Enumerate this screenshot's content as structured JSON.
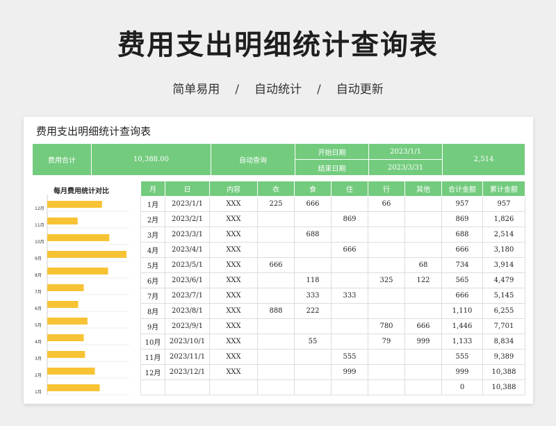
{
  "header": {
    "title": "费用支出明细统计查询表",
    "subtitle": [
      "简单易用",
      "自动统计",
      "自动更新"
    ],
    "separator": "/"
  },
  "sheet": {
    "title": "费用支出明细统计查询表",
    "summary": {
      "total_label": "费用合计",
      "total_value": "10,388.00",
      "query_label": "自动查询",
      "start_label": "开始日期",
      "start_value": "2023/1/1",
      "end_label": "结束日期",
      "end_value": "2023/3/31",
      "result_value": "2,514"
    }
  },
  "chart_data": {
    "type": "bar",
    "orientation": "horizontal",
    "title": "每月费用统计对比",
    "categories": [
      "12月",
      "11月",
      "10月",
      "9月",
      "8月",
      "7月",
      "6月",
      "5月",
      "4月",
      "3月",
      "2月",
      "1月"
    ],
    "values": [
      999,
      555,
      1133,
      1446,
      1110,
      666,
      565,
      734,
      666,
      688,
      869,
      957
    ],
    "xlim": [
      0,
      1446
    ],
    "grid": false,
    "color": "#f7c334"
  },
  "table": {
    "columns": [
      "月",
      "日",
      "内容",
      "衣",
      "食",
      "住",
      "行",
      "其他",
      "合计金额",
      "累计金额"
    ],
    "rows": [
      [
        "1月",
        "2023/1/1",
        "XXX",
        "225",
        "666",
        "",
        "66",
        "",
        "957",
        "957"
      ],
      [
        "2月",
        "2023/2/1",
        "XXX",
        "",
        "",
        "869",
        "",
        "",
        "869",
        "1,826"
      ],
      [
        "3月",
        "2023/3/1",
        "XXX",
        "",
        "688",
        "",
        "",
        "",
        "688",
        "2,514"
      ],
      [
        "4月",
        "2023/4/1",
        "XXX",
        "",
        "",
        "666",
        "",
        "",
        "666",
        "3,180"
      ],
      [
        "5月",
        "2023/5/1",
        "XXX",
        "666",
        "",
        "",
        "",
        "68",
        "734",
        "3,914"
      ],
      [
        "6月",
        "2023/6/1",
        "XXX",
        "",
        "118",
        "",
        "325",
        "122",
        "565",
        "4,479"
      ],
      [
        "7月",
        "2023/7/1",
        "XXX",
        "",
        "333",
        "333",
        "",
        "",
        "666",
        "5,145"
      ],
      [
        "8月",
        "2023/8/1",
        "XXX",
        "888",
        "222",
        "",
        "",
        "",
        "1,110",
        "6,255"
      ],
      [
        "9月",
        "2023/9/1",
        "XXX",
        "",
        "",
        "",
        "780",
        "666",
        "1,446",
        "7,701"
      ],
      [
        "10月",
        "2023/10/1",
        "XXX",
        "",
        "55",
        "",
        "79",
        "999",
        "1,133",
        "8,834"
      ],
      [
        "11月",
        "2023/11/1",
        "XXX",
        "",
        "",
        "555",
        "",
        "",
        "555",
        "9,389"
      ],
      [
        "12月",
        "2023/12/1",
        "XXX",
        "",
        "",
        "999",
        "",
        "",
        "999",
        "10,388"
      ],
      [
        "",
        "",
        "",
        "",
        "",
        "",
        "",
        "",
        "0",
        "10,388"
      ]
    ]
  }
}
